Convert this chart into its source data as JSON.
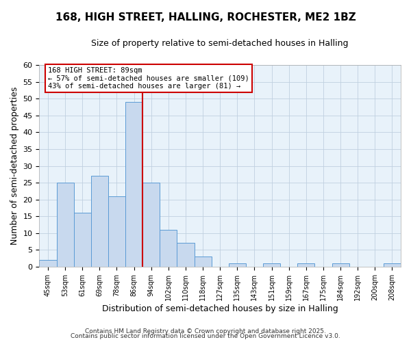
{
  "title": "168, HIGH STREET, HALLING, ROCHESTER, ME2 1BZ",
  "subtitle": "Size of property relative to semi-detached houses in Halling",
  "xlabel": "Distribution of semi-detached houses by size in Halling",
  "ylabel": "Number of semi-detached properties",
  "bin_labels": [
    "45sqm",
    "53sqm",
    "61sqm",
    "69sqm",
    "78sqm",
    "86sqm",
    "94sqm",
    "102sqm",
    "110sqm",
    "118sqm",
    "127sqm",
    "135sqm",
    "143sqm",
    "151sqm",
    "159sqm",
    "167sqm",
    "175sqm",
    "184sqm",
    "192sqm",
    "200sqm",
    "208sqm"
  ],
  "bar_heights": [
    2,
    25,
    16,
    27,
    21,
    49,
    25,
    11,
    7,
    3,
    0,
    1,
    0,
    1,
    0,
    1,
    0,
    1,
    0,
    0,
    1
  ],
  "bar_color": "#c8d9ee",
  "bar_edge_color": "#5b9bd5",
  "grid_color": "#c0d0e0",
  "bg_color": "#e8f2fa",
  "property_line_x": 5.5,
  "annotation_line1": "168 HIGH STREET: 89sqm",
  "annotation_line2": "← 57% of semi-detached houses are smaller (109)",
  "annotation_line3": "43% of semi-detached houses are larger (81) →",
  "annotation_box_color": "#ffffff",
  "annotation_box_edge": "#cc0000",
  "vline_color": "#cc0000",
  "ylim": [
    0,
    60
  ],
  "yticks": [
    0,
    5,
    10,
    15,
    20,
    25,
    30,
    35,
    40,
    45,
    50,
    55,
    60
  ],
  "footer1": "Contains HM Land Registry data © Crown copyright and database right 2025.",
  "footer2": "Contains public sector information licensed under the Open Government Licence v3.0."
}
